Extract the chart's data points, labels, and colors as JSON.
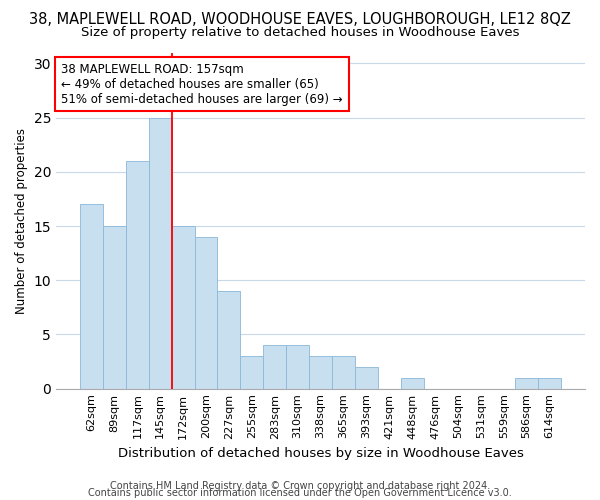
{
  "title": "38, MAPLEWELL ROAD, WOODHOUSE EAVES, LOUGHBOROUGH, LE12 8QZ",
  "subtitle": "Size of property relative to detached houses in Woodhouse Eaves",
  "xlabel": "Distribution of detached houses by size in Woodhouse Eaves",
  "ylabel": "Number of detached properties",
  "categories": [
    "62sqm",
    "89sqm",
    "117sqm",
    "145sqm",
    "172sqm",
    "200sqm",
    "227sqm",
    "255sqm",
    "283sqm",
    "310sqm",
    "338sqm",
    "365sqm",
    "393sqm",
    "421sqm",
    "448sqm",
    "476sqm",
    "504sqm",
    "531sqm",
    "559sqm",
    "586sqm",
    "614sqm"
  ],
  "values": [
    17,
    15,
    21,
    25,
    15,
    14,
    9,
    3,
    4,
    4,
    3,
    3,
    2,
    0,
    1,
    0,
    0,
    0,
    0,
    1,
    1
  ],
  "bar_color": "#c8dff0",
  "bar_edge_color": "#8ab8d8",
  "vline_x": 3.5,
  "vline_color": "red",
  "annotation_text": "38 MAPLEWELL ROAD: 157sqm\n← 49% of detached houses are smaller (65)\n51% of semi-detached houses are larger (69) →",
  "annotation_box_color": "white",
  "annotation_box_edge_color": "red",
  "ylim": [
    0,
    31
  ],
  "yticks": [
    0,
    5,
    10,
    15,
    20,
    25,
    30
  ],
  "footer1": "Contains HM Land Registry data © Crown copyright and database right 2024.",
  "footer2": "Contains public sector information licensed under the Open Government Licence v3.0.",
  "bg_color": "#ffffff",
  "plot_bg_color": "#ffffff",
  "grid_color": "#c8d8e8",
  "title_fontsize": 10.5,
  "subtitle_fontsize": 9.5,
  "xlabel_fontsize": 9.5,
  "ylabel_fontsize": 8.5,
  "tick_fontsize": 8,
  "annotation_fontsize": 8.5,
  "footer_fontsize": 7
}
